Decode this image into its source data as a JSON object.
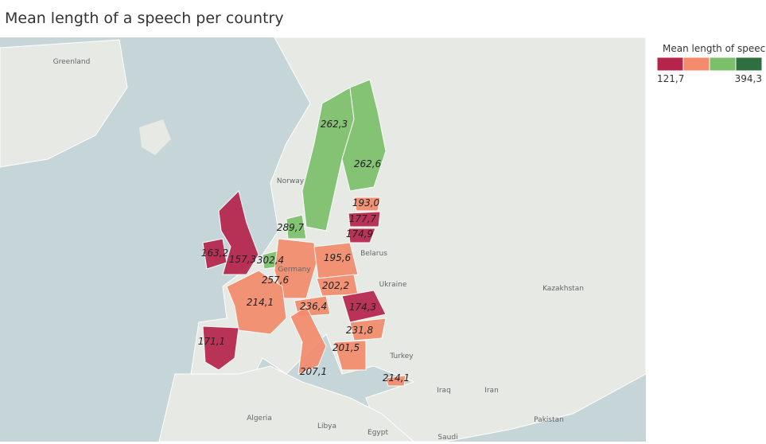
{
  "chart_data": {
    "type": "choropleth",
    "title": "Mean length of a speech per country",
    "legend": {
      "title": "Mean length of speeche..",
      "min": 121.7,
      "max": 394.3,
      "min_label": "121,7",
      "max_label": "394,3",
      "colors": [
        "#b5244a",
        "#f48b6c",
        "#7cbf6b",
        "#2f6f3f"
      ]
    },
    "values": [
      262.3,
      262.6,
      193.0,
      177.7,
      174.9,
      289.7,
      163.2,
      157.3,
      302.4,
      257.6,
      195.6,
      214.1,
      202.2,
      236.4,
      174.3,
      231.8,
      201.5,
      171.1,
      207.1,
      214.1
    ],
    "value_labels": [
      "262,3",
      "262,6",
      "193,0",
      "177,7",
      "174,9",
      "289,7",
      "163,2",
      "157,3",
      "302,4",
      "257,6",
      "195,6",
      "214,1",
      "202,2",
      "236,4",
      "174,3",
      "231,8",
      "201,5",
      "171,1",
      "207,1",
      "214,1"
    ],
    "place_labels": [
      "Greenland",
      "Norway",
      "Belarus",
      "Ukraine",
      "Kazakhstan",
      "Turkey",
      "Iraq",
      "Iran",
      "Algeria",
      "Libya",
      "Egypt",
      "Saudi",
      "Pakistan",
      "Germany"
    ]
  }
}
